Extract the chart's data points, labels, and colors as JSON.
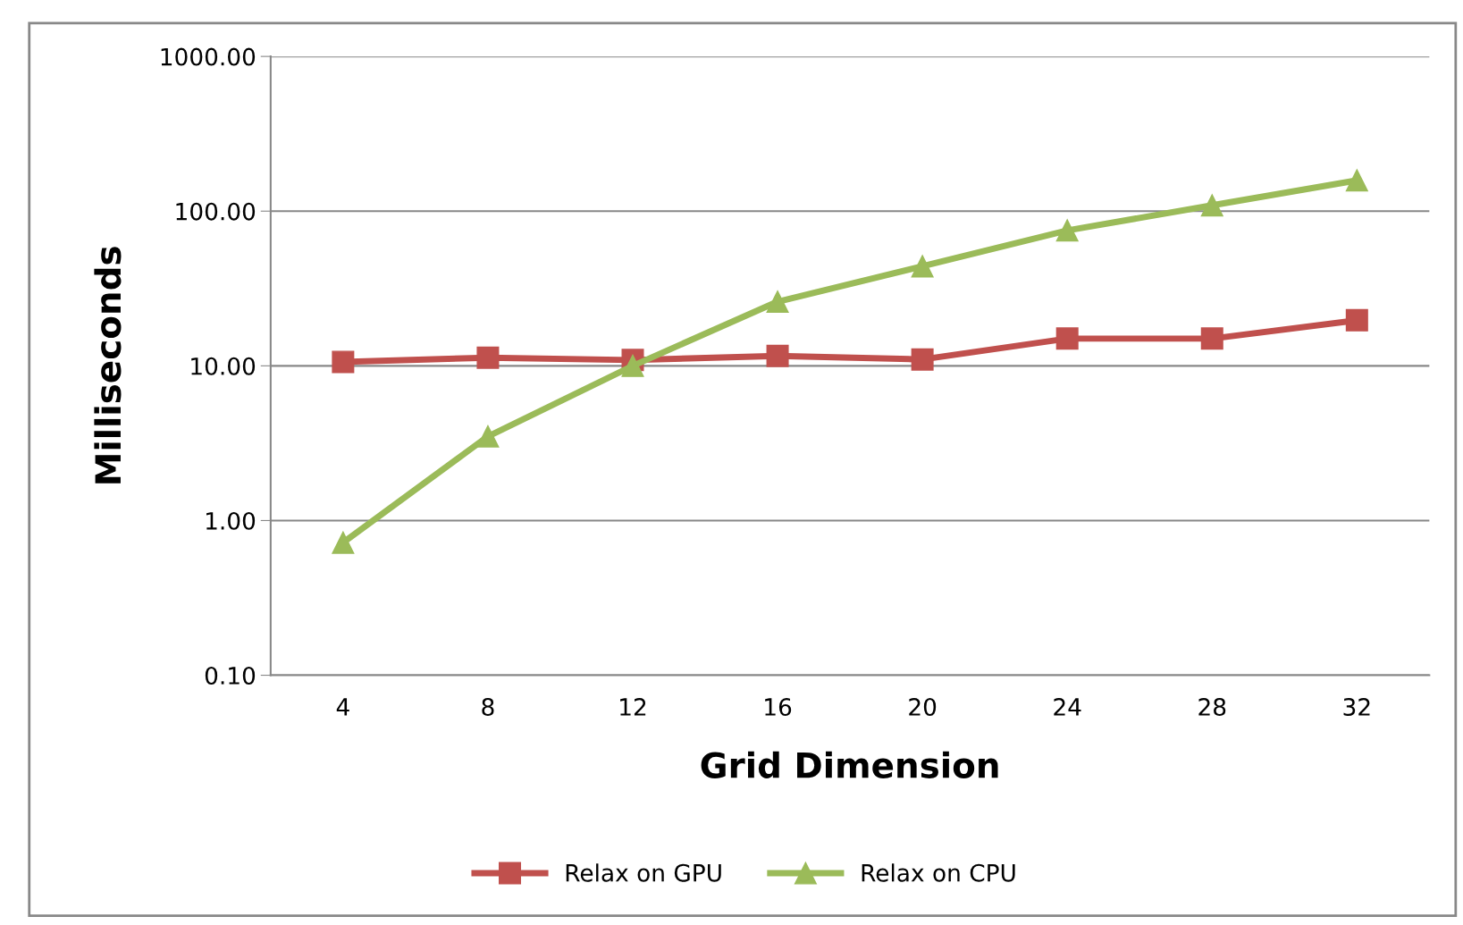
{
  "chart_data": {
    "type": "line",
    "xlabel": "Grid Dimension",
    "ylabel": "Milliseconds",
    "categories": [
      "4",
      "8",
      "12",
      "16",
      "20",
      "24",
      "28",
      "32"
    ],
    "series": [
      {
        "name": "Relax on GPU",
        "color": "#c0504d",
        "marker": "square",
        "values": [
          10.6,
          11.3,
          10.9,
          11.6,
          11.0,
          15.0,
          15.0,
          19.7
        ]
      },
      {
        "name": "Relax on CPU",
        "color": "#9bbb59",
        "marker": "triangle",
        "values": [
          0.72,
          3.5,
          10,
          26,
          44,
          75,
          109,
          158
        ]
      }
    ],
    "log": "y",
    "ylim": [
      0.1,
      1000
    ],
    "yticks": [
      {
        "value": 0.1,
        "label": "0.10"
      },
      {
        "value": 1,
        "label": "1.00"
      },
      {
        "value": 10,
        "label": "10.00"
      },
      {
        "value": 100,
        "label": "100.00"
      },
      {
        "value": 1000,
        "label": "1000.00"
      }
    ],
    "grid": "y",
    "legend": "bottom",
    "line_style": "solid"
  }
}
